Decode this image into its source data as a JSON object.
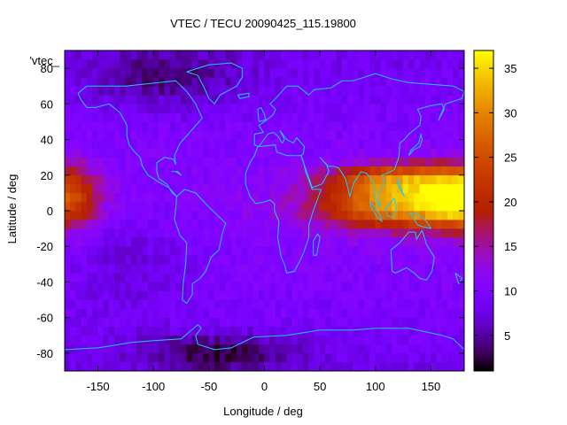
{
  "chart_data": {
    "type": "heatmap",
    "title": "VTEC / TECU 20090425_115.19800",
    "xlabel": "Longitude / deg",
    "ylabel": "Latitude / deg",
    "key_label": "'vtec_",
    "xlim": [
      -180,
      180
    ],
    "ylim": [
      -90,
      90
    ],
    "xticks": [
      -150,
      -100,
      -50,
      0,
      50,
      100,
      150
    ],
    "yticks": [
      -80,
      -60,
      -40,
      -20,
      0,
      20,
      40,
      60,
      80
    ],
    "colorbar": {
      "min": 1,
      "max": 37,
      "ticks": [
        5,
        10,
        15,
        20,
        25,
        30,
        35
      ]
    },
    "grid_step_deg": 5,
    "field": {
      "background_tec": 8,
      "equatorial_anomaly": [
        {
          "lon": 130,
          "lat": 3,
          "sigma_lon": 55,
          "sigma_lat": 9,
          "amp": 22
        },
        {
          "lon": 125,
          "lat": 18,
          "sigma_lon": 45,
          "sigma_lat": 6,
          "amp": 16
        },
        {
          "lon": -180,
          "lat": 8,
          "sigma_lon": 22,
          "sigma_lat": 12,
          "amp": 16
        },
        {
          "lon": 180,
          "lat": 8,
          "sigma_lon": 22,
          "sigma_lat": 12,
          "amp": 16
        }
      ],
      "depletions": [
        {
          "lon": -40,
          "lat": -80,
          "sigma_lon": 50,
          "sigma_lat": 8,
          "amp": -6
        },
        {
          "lon": -90,
          "lat": 75,
          "sigma_lon": 50,
          "sigma_lat": 12,
          "amp": -5
        },
        {
          "lon": -120,
          "lat": -30,
          "sigma_lon": 40,
          "sigma_lat": 20,
          "amp": -3
        }
      ]
    },
    "coastlines": [
      {
        "name": "north-america",
        "points": [
          [
            -168,
            66
          ],
          [
            -160,
            70
          ],
          [
            -140,
            70
          ],
          [
            -125,
            70
          ],
          [
            -95,
            72
          ],
          [
            -80,
            73
          ],
          [
            -70,
            67
          ],
          [
            -62,
            60
          ],
          [
            -56,
            52
          ],
          [
            -66,
            45
          ],
          [
            -70,
            42
          ],
          [
            -76,
            38
          ],
          [
            -81,
            31
          ],
          [
            -80,
            26
          ],
          [
            -82,
            29
          ],
          [
            -90,
            30
          ],
          [
            -97,
            27
          ],
          [
            -97,
            22
          ],
          [
            -95,
            18
          ],
          [
            -88,
            15
          ],
          [
            -83,
            10
          ],
          [
            -79,
            8
          ],
          [
            -86,
            13
          ],
          [
            -95,
            16
          ],
          [
            -105,
            20
          ],
          [
            -110,
            25
          ],
          [
            -112,
            30
          ],
          [
            -117,
            33
          ],
          [
            -122,
            37
          ],
          [
            -124,
            42
          ],
          [
            -124,
            48
          ],
          [
            -130,
            55
          ],
          [
            -140,
            60
          ],
          [
            -152,
            58
          ],
          [
            -160,
            58
          ],
          [
            -165,
            62
          ],
          [
            -168,
            66
          ]
        ]
      },
      {
        "name": "greenland",
        "points": [
          [
            -50,
            82
          ],
          [
            -30,
            83
          ],
          [
            -20,
            80
          ],
          [
            -20,
            75
          ],
          [
            -25,
            70
          ],
          [
            -40,
            65
          ],
          [
            -45,
            60
          ],
          [
            -50,
            63
          ],
          [
            -55,
            70
          ],
          [
            -60,
            76
          ],
          [
            -70,
            78
          ],
          [
            -50,
            82
          ]
        ]
      },
      {
        "name": "south-america",
        "points": [
          [
            -79,
            8
          ],
          [
            -72,
            12
          ],
          [
            -62,
            10
          ],
          [
            -50,
            2
          ],
          [
            -35,
            -7
          ],
          [
            -38,
            -13
          ],
          [
            -41,
            -22
          ],
          [
            -48,
            -26
          ],
          [
            -53,
            -34
          ],
          [
            -58,
            -38
          ],
          [
            -65,
            -41
          ],
          [
            -65,
            -47
          ],
          [
            -70,
            -52
          ],
          [
            -74,
            -50
          ],
          [
            -73,
            -40
          ],
          [
            -71,
            -30
          ],
          [
            -70,
            -18
          ],
          [
            -76,
            -14
          ],
          [
            -81,
            -5
          ],
          [
            -80,
            1
          ],
          [
            -79,
            8
          ]
        ]
      },
      {
        "name": "eurasia",
        "points": [
          [
            -9,
            43
          ],
          [
            -9,
            37
          ],
          [
            -5,
            36
          ],
          [
            3,
            43
          ],
          [
            8,
            44
          ],
          [
            12,
            42
          ],
          [
            16,
            38
          ],
          [
            18,
            40
          ],
          [
            14,
            45
          ],
          [
            20,
            40
          ],
          [
            26,
            38
          ],
          [
            29,
            41
          ],
          [
            36,
            36
          ],
          [
            35,
            32
          ],
          [
            33,
            31
          ],
          [
            43,
            13
          ],
          [
            52,
            15
          ],
          [
            58,
            22
          ],
          [
            56,
            26
          ],
          [
            50,
            30
          ],
          [
            57,
            25
          ],
          [
            62,
            25
          ],
          [
            67,
            24
          ],
          [
            73,
            18
          ],
          [
            77,
            8
          ],
          [
            80,
            15
          ],
          [
            87,
            22
          ],
          [
            92,
            21
          ],
          [
            98,
            16
          ],
          [
            100,
            7
          ],
          [
            104,
            2
          ],
          [
            103,
            10
          ],
          [
            108,
            15
          ],
          [
            106,
            20
          ],
          [
            110,
            21
          ],
          [
            117,
            23
          ],
          [
            121,
            30
          ],
          [
            122,
            38
          ],
          [
            126,
            40
          ],
          [
            130,
            43
          ],
          [
            140,
            48
          ],
          [
            141,
            53
          ],
          [
            138,
            57
          ],
          [
            150,
            59
          ],
          [
            160,
            60
          ],
          [
            162,
            57
          ],
          [
            157,
            51
          ],
          [
            163,
            60
          ],
          [
            178,
            63
          ],
          [
            180,
            67
          ],
          [
            170,
            70
          ],
          [
            150,
            71
          ],
          [
            130,
            72
          ],
          [
            115,
            74
          ],
          [
            100,
            77
          ],
          [
            80,
            73
          ],
          [
            70,
            73
          ],
          [
            60,
            69
          ],
          [
            45,
            68
          ],
          [
            40,
            65
          ],
          [
            30,
            70
          ],
          [
            20,
            70
          ],
          [
            10,
            63
          ],
          [
            5,
            60
          ],
          [
            10,
            57
          ],
          [
            8,
            54
          ],
          [
            0,
            50
          ],
          [
            -5,
            48
          ],
          [
            -1,
            44
          ],
          [
            -9,
            43
          ]
        ]
      },
      {
        "name": "africa",
        "points": [
          [
            -17,
            15
          ],
          [
            -17,
            21
          ],
          [
            -13,
            27
          ],
          [
            -9,
            31
          ],
          [
            -6,
            36
          ],
          [
            10,
            37
          ],
          [
            11,
            33
          ],
          [
            20,
            31
          ],
          [
            30,
            31
          ],
          [
            33,
            31
          ],
          [
            35,
            28
          ],
          [
            37,
            22
          ],
          [
            43,
            12
          ],
          [
            51,
            12
          ],
          [
            44,
            0
          ],
          [
            40,
            -8
          ],
          [
            40,
            -15
          ],
          [
            35,
            -24
          ],
          [
            32,
            -28
          ],
          [
            27,
            -34
          ],
          [
            20,
            -35
          ],
          [
            18,
            -30
          ],
          [
            15,
            -26
          ],
          [
            12,
            -15
          ],
          [
            13,
            -6
          ],
          [
            9,
            0
          ],
          [
            9,
            4
          ],
          [
            5,
            6
          ],
          [
            0,
            5
          ],
          [
            -8,
            4
          ],
          [
            -13,
            8
          ],
          [
            -17,
            15
          ]
        ]
      },
      {
        "name": "australia",
        "points": [
          [
            114,
            -22
          ],
          [
            122,
            -18
          ],
          [
            130,
            -12
          ],
          [
            136,
            -12
          ],
          [
            137,
            -16
          ],
          [
            142,
            -11
          ],
          [
            146,
            -19
          ],
          [
            153,
            -26
          ],
          [
            151,
            -34
          ],
          [
            146,
            -39
          ],
          [
            140,
            -38
          ],
          [
            135,
            -35
          ],
          [
            128,
            -32
          ],
          [
            118,
            -35
          ],
          [
            115,
            -34
          ],
          [
            114,
            -22
          ]
        ]
      },
      {
        "name": "borneo",
        "points": [
          [
            109,
            1
          ],
          [
            111,
            -3
          ],
          [
            116,
            -4
          ],
          [
            119,
            1
          ],
          [
            117,
            7
          ],
          [
            113,
            4
          ],
          [
            109,
            1
          ]
        ]
      },
      {
        "name": "sumatra",
        "points": [
          [
            95,
            5
          ],
          [
            98,
            3
          ],
          [
            104,
            -2
          ],
          [
            106,
            -6
          ],
          [
            102,
            -4
          ],
          [
            97,
            1
          ],
          [
            95,
            5
          ]
        ]
      },
      {
        "name": "new-guinea",
        "points": [
          [
            131,
            -1
          ],
          [
            138,
            -2
          ],
          [
            146,
            -6
          ],
          [
            150,
            -10
          ],
          [
            143,
            -9
          ],
          [
            138,
            -8
          ],
          [
            131,
            -1
          ]
        ]
      },
      {
        "name": "madagascar",
        "points": [
          [
            44,
            -25
          ],
          [
            47,
            -25
          ],
          [
            50,
            -15
          ],
          [
            48,
            -13
          ],
          [
            44,
            -17
          ],
          [
            44,
            -25
          ]
        ]
      },
      {
        "name": "japan",
        "points": [
          [
            130,
            31
          ],
          [
            134,
            34
          ],
          [
            140,
            36
          ],
          [
            142,
            40
          ],
          [
            141,
            43
          ],
          [
            139,
            38
          ],
          [
            132,
            34
          ],
          [
            130,
            31
          ]
        ]
      },
      {
        "name": "new-zealand",
        "points": [
          [
            172,
            -35
          ],
          [
            178,
            -38
          ],
          [
            175,
            -41
          ],
          [
            172,
            -35
          ]
        ]
      },
      {
        "name": "antarctica",
        "points": [
          [
            -180,
            -78
          ],
          [
            -150,
            -77
          ],
          [
            -120,
            -74
          ],
          [
            -100,
            -73
          ],
          [
            -75,
            -72
          ],
          [
            -60,
            -64
          ],
          [
            -57,
            -66
          ],
          [
            -62,
            -70
          ],
          [
            -60,
            -75
          ],
          [
            -45,
            -78
          ],
          [
            -30,
            -77
          ],
          [
            -10,
            -71
          ],
          [
            20,
            -70
          ],
          [
            50,
            -67
          ],
          [
            80,
            -67
          ],
          [
            100,
            -66
          ],
          [
            130,
            -66
          ],
          [
            160,
            -70
          ],
          [
            170,
            -72
          ],
          [
            180,
            -78
          ]
        ]
      },
      {
        "name": "british-isles",
        "points": [
          [
            -5,
            50
          ],
          [
            1,
            51
          ],
          [
            0,
            54
          ],
          [
            -3,
            58
          ],
          [
            -6,
            57
          ],
          [
            -5,
            50
          ]
        ]
      },
      {
        "name": "iceland",
        "points": [
          [
            -24,
            65
          ],
          [
            -14,
            66
          ],
          [
            -14,
            64
          ],
          [
            -22,
            63
          ],
          [
            -24,
            65
          ]
        ]
      },
      {
        "name": "cuba",
        "points": [
          [
            -84,
            22
          ],
          [
            -78,
            22
          ],
          [
            -75,
            20
          ],
          [
            -80,
            22
          ],
          [
            -84,
            22
          ]
        ]
      },
      {
        "name": "philippines",
        "points": [
          [
            120,
            18
          ],
          [
            122,
            14
          ],
          [
            126,
            8
          ],
          [
            124,
            10
          ],
          [
            120,
            15
          ],
          [
            120,
            18
          ]
        ]
      }
    ]
  }
}
